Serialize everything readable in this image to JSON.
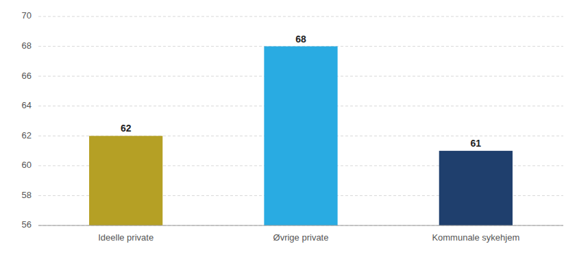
{
  "chart_data": {
    "type": "bar",
    "categories": [
      "Ideelle private",
      "Øvrige private",
      "Kommunale sykehjem"
    ],
    "values": [
      62,
      68,
      61
    ],
    "colors": [
      "#b5a025",
      "#29abe2",
      "#1f3f6d"
    ],
    "ylim": [
      56,
      70
    ],
    "yticks": [
      56,
      58,
      60,
      62,
      64,
      66,
      68,
      70
    ],
    "grid": true,
    "data_labels": true
  }
}
